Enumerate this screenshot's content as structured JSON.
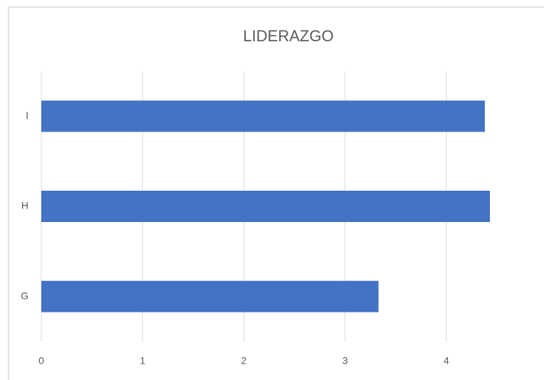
{
  "chart_data": {
    "type": "barh",
    "title": "LIDERAZGO",
    "categories": [
      "G",
      "H",
      "I"
    ],
    "values": [
      3.33,
      4.43,
      4.38
    ],
    "color": "#4472c4",
    "xlim": [
      0,
      4.5
    ],
    "xticks": [
      0,
      1,
      2,
      3,
      4
    ],
    "grid": true
  }
}
